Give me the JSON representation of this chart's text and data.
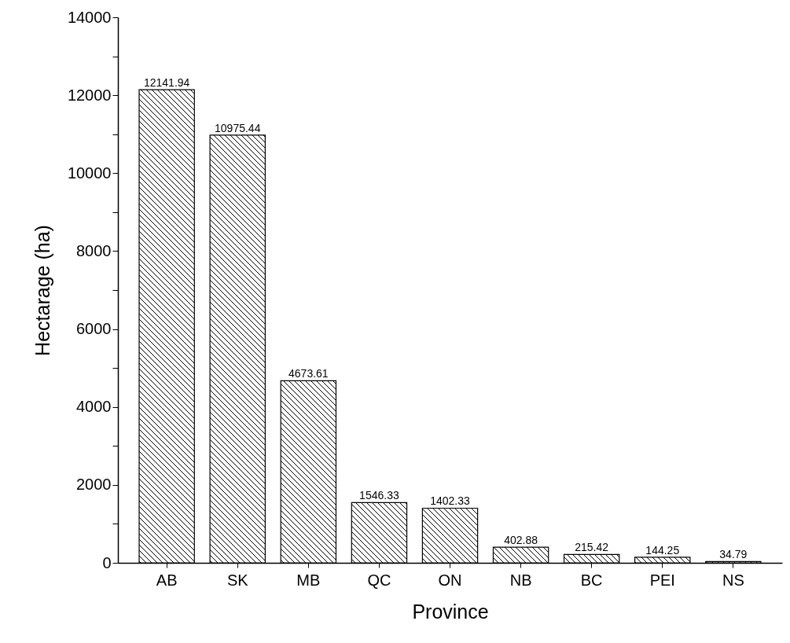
{
  "chart_data": {
    "type": "bar",
    "xlabel": "Province",
    "ylabel": "Hectarage (ha)",
    "categories": [
      "AB",
      "SK",
      "MB",
      "QC",
      "ON",
      "NB",
      "BC",
      "PEI",
      "NS"
    ],
    "values": [
      12141.94,
      10975.44,
      4673.61,
      1546.33,
      1402.33,
      402.88,
      215.42,
      144.25,
      34.79
    ],
    "color": "#000000",
    "ylim": [
      0,
      14000
    ],
    "yticks": [
      0,
      {
        "value": 1000,
        "label": null
      },
      2000,
      {
        "value": 3000,
        "label": null
      },
      4000,
      {
        "value": 5000,
        "label": null
      },
      6000,
      {
        "value": 7000,
        "label": null
      },
      8000,
      {
        "value": 9000,
        "label": null
      },
      10000,
      {
        "value": 11000,
        "label": null
      },
      12000,
      {
        "value": 13000,
        "label": null
      },
      14000
    ],
    "data_labels": true,
    "grid": false
  }
}
